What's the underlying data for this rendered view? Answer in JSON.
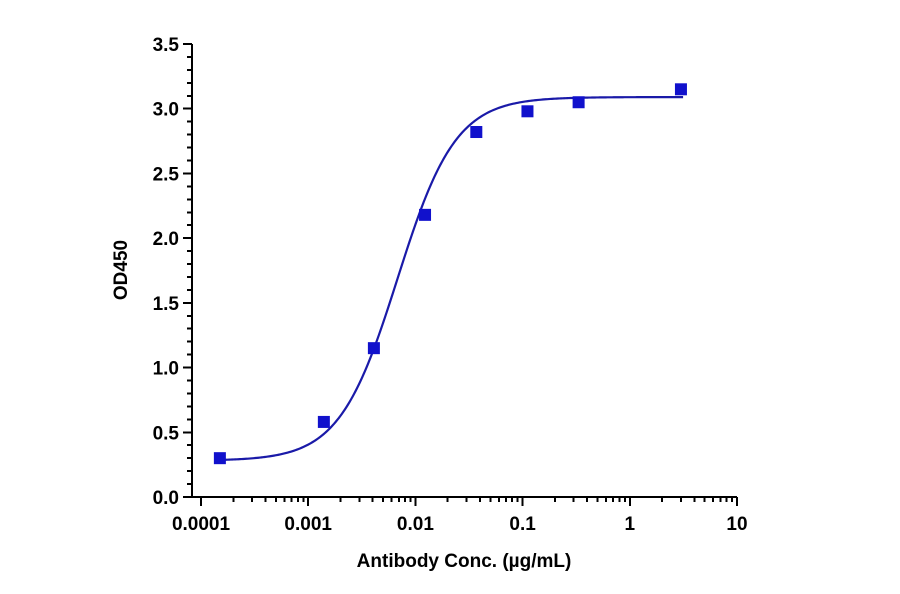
{
  "chart_data": {
    "type": "scatter",
    "title": "",
    "xlabel": "Antibody Conc. (µg/mL)",
    "ylabel": "OD450",
    "x_scale": "log",
    "xlim": [
      0.0001,
      10
    ],
    "ylim": [
      0,
      3.5
    ],
    "x_ticks": [
      0.0001,
      0.001,
      0.01,
      0.1,
      1,
      10
    ],
    "x_tick_labels": [
      "0.0001",
      "0.001",
      "0.01",
      "0.1",
      "1",
      "10"
    ],
    "y_ticks": [
      0,
      0.5,
      1,
      1.5,
      2,
      2.5,
      3,
      3.5
    ],
    "y_tick_labels": [
      "0.0",
      "0.5",
      "1.0",
      "1.5",
      "2.0",
      "2.5",
      "3.0",
      "3.5"
    ],
    "grid": false,
    "legend": "none",
    "series": [
      {
        "marker": "square",
        "color": "#1111cc",
        "x": [
          0.00015,
          0.0014,
          0.0041,
          0.0123,
          0.037,
          0.111,
          0.333,
          3.0
        ],
        "y": [
          0.3,
          0.58,
          1.15,
          2.18,
          2.82,
          2.98,
          3.05,
          3.15
        ]
      }
    ],
    "fit_curve": {
      "model": "4PL",
      "color": "#1a1aa8",
      "bottom": 0.28,
      "top": 3.09,
      "ec50": 0.0068,
      "hill": 1.6
    }
  }
}
